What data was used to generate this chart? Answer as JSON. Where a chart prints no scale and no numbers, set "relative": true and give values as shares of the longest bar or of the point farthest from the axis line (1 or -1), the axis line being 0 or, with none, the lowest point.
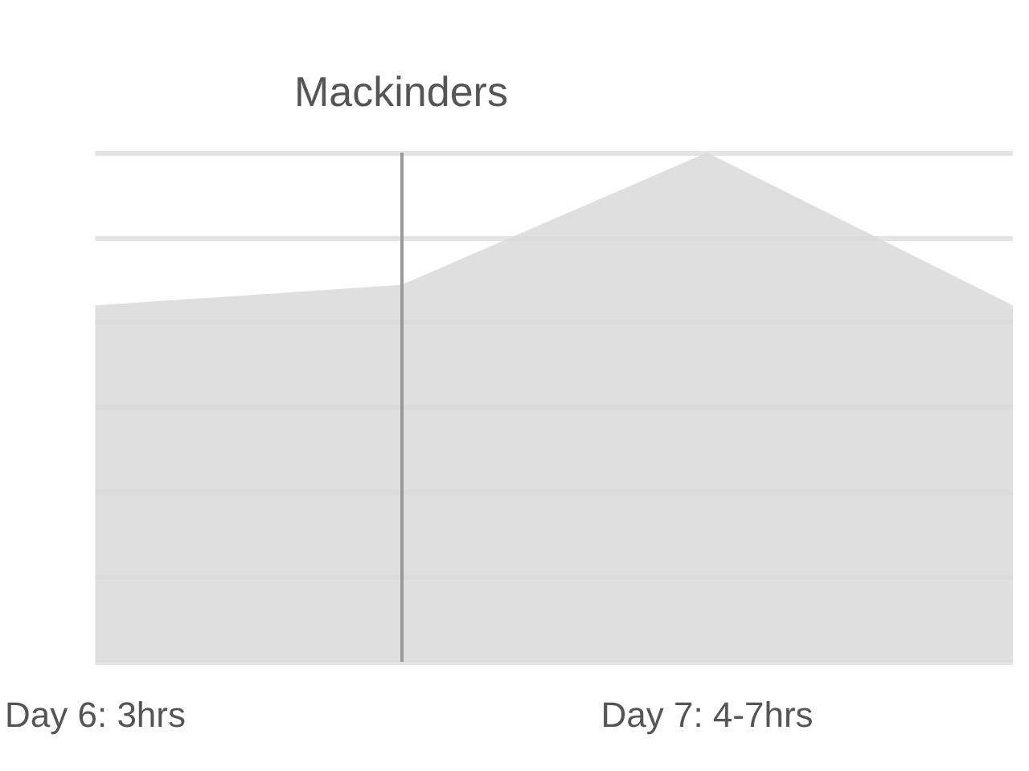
{
  "chart_data": {
    "type": "area",
    "relative": true,
    "categories": [
      "Day 6: 3hrs",
      null,
      "Day 7: 4-7hrs",
      null
    ],
    "series": [
      {
        "color": "#d9d9d9",
        "values": [
          0.7,
          0.74,
          1.0,
          0.7
        ]
      }
    ],
    "annotations": [
      "Mackinders"
    ],
    "grid": true
  }
}
